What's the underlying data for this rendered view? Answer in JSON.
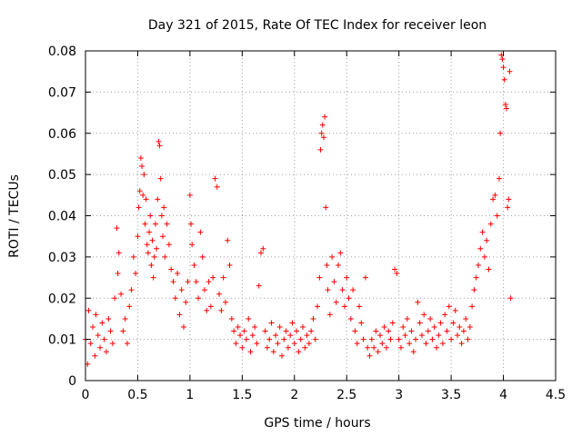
{
  "chart_data": {
    "type": "scatter",
    "title": "Day 321 of 2015, Rate Of TEC Index for receiver leon",
    "xlabel": "GPS time / hours",
    "ylabel": "ROTI / TECUs",
    "xlim": [
      0,
      4.5
    ],
    "ylim": [
      0,
      0.08
    ],
    "x_ticks": [
      0,
      0.5,
      1,
      1.5,
      2,
      2.5,
      3,
      3.5,
      4,
      4.5
    ],
    "x_tick_labels": [
      "0",
      "0.5",
      "1",
      "1.5",
      "2",
      "2.5",
      "3",
      "3.5",
      "4",
      "4.5"
    ],
    "y_ticks": [
      0,
      0.01,
      0.02,
      0.03,
      0.04,
      0.05,
      0.06,
      0.07,
      0.08
    ],
    "y_tick_labels": [
      "0",
      "0.01",
      "0.02",
      "0.03",
      "0.04",
      "0.05",
      "0.06",
      "0.07",
      "0.08"
    ],
    "grid": true,
    "marker": "+",
    "color": "#ff0000",
    "series": [
      {
        "name": "ROTI",
        "points": [
          [
            0.0,
            0.01
          ],
          [
            0.02,
            0.004
          ],
          [
            0.03,
            0.017
          ],
          [
            0.05,
            0.009
          ],
          [
            0.07,
            0.013
          ],
          [
            0.09,
            0.006
          ],
          [
            0.1,
            0.016
          ],
          [
            0.12,
            0.011
          ],
          [
            0.14,
            0.008
          ],
          [
            0.16,
            0.014
          ],
          [
            0.18,
            0.01
          ],
          [
            0.2,
            0.007
          ],
          [
            0.22,
            0.015
          ],
          [
            0.24,
            0.012
          ],
          [
            0.26,
            0.009
          ],
          [
            0.28,
            0.02
          ],
          [
            0.3,
            0.037
          ],
          [
            0.31,
            0.026
          ],
          [
            0.32,
            0.031
          ],
          [
            0.34,
            0.021
          ],
          [
            0.36,
            0.012
          ],
          [
            0.38,
            0.015
          ],
          [
            0.4,
            0.009
          ],
          [
            0.42,
            0.018
          ],
          [
            0.44,
            0.022
          ],
          [
            0.46,
            0.03
          ],
          [
            0.48,
            0.026
          ],
          [
            0.5,
            0.035
          ],
          [
            0.51,
            0.042
          ],
          [
            0.52,
            0.046
          ],
          [
            0.53,
            0.054
          ],
          [
            0.54,
            0.052
          ],
          [
            0.55,
            0.045
          ],
          [
            0.56,
            0.05
          ],
          [
            0.57,
            0.038
          ],
          [
            0.58,
            0.044
          ],
          [
            0.59,
            0.033
          ],
          [
            0.6,
            0.031
          ],
          [
            0.61,
            0.036
          ],
          [
            0.62,
            0.04
          ],
          [
            0.63,
            0.028
          ],
          [
            0.64,
            0.034
          ],
          [
            0.65,
            0.025
          ],
          [
            0.66,
            0.03
          ],
          [
            0.67,
            0.038
          ],
          [
            0.68,
            0.032
          ],
          [
            0.69,
            0.044
          ],
          [
            0.7,
            0.058
          ],
          [
            0.71,
            0.057
          ],
          [
            0.72,
            0.049
          ],
          [
            0.73,
            0.04
          ],
          [
            0.74,
            0.035
          ],
          [
            0.75,
            0.042
          ],
          [
            0.76,
            0.03
          ],
          [
            0.78,
            0.038
          ],
          [
            0.8,
            0.033
          ],
          [
            0.82,
            0.027
          ],
          [
            0.84,
            0.024
          ],
          [
            0.86,
            0.02
          ],
          [
            0.88,
            0.026
          ],
          [
            0.9,
            0.016
          ],
          [
            0.92,
            0.022
          ],
          [
            0.94,
            0.013
          ],
          [
            0.96,
            0.019
          ],
          [
            0.98,
            0.024
          ],
          [
            1.0,
            0.045
          ],
          [
            1.01,
            0.038
          ],
          [
            1.02,
            0.033
          ],
          [
            1.04,
            0.028
          ],
          [
            1.06,
            0.024
          ],
          [
            1.08,
            0.02
          ],
          [
            1.1,
            0.036
          ],
          [
            1.12,
            0.03
          ],
          [
            1.14,
            0.022
          ],
          [
            1.16,
            0.017
          ],
          [
            1.18,
            0.024
          ],
          [
            1.2,
            0.018
          ],
          [
            1.22,
            0.025
          ],
          [
            1.24,
            0.049
          ],
          [
            1.26,
            0.047
          ],
          [
            1.28,
            0.021
          ],
          [
            1.3,
            0.017
          ],
          [
            1.32,
            0.025
          ],
          [
            1.34,
            0.019
          ],
          [
            1.36,
            0.034
          ],
          [
            1.38,
            0.028
          ],
          [
            1.4,
            0.015
          ],
          [
            1.42,
            0.012
          ],
          [
            1.44,
            0.009
          ],
          [
            1.46,
            0.013
          ],
          [
            1.48,
            0.011
          ],
          [
            1.5,
            0.008
          ],
          [
            1.52,
            0.012
          ],
          [
            1.54,
            0.01
          ],
          [
            1.56,
            0.015
          ],
          [
            1.58,
            0.007
          ],
          [
            1.6,
            0.011
          ],
          [
            1.62,
            0.013
          ],
          [
            1.64,
            0.009
          ],
          [
            1.66,
            0.023
          ],
          [
            1.68,
            0.031
          ],
          [
            1.7,
            0.032
          ],
          [
            1.72,
            0.012
          ],
          [
            1.74,
            0.008
          ],
          [
            1.76,
            0.01
          ],
          [
            1.78,
            0.014
          ],
          [
            1.8,
            0.007
          ],
          [
            1.82,
            0.011
          ],
          [
            1.84,
            0.009
          ],
          [
            1.86,
            0.013
          ],
          [
            1.88,
            0.006
          ],
          [
            1.9,
            0.01
          ],
          [
            1.92,
            0.012
          ],
          [
            1.94,
            0.008
          ],
          [
            1.96,
            0.011
          ],
          [
            1.98,
            0.014
          ],
          [
            2.0,
            0.009
          ],
          [
            2.02,
            0.012
          ],
          [
            2.04,
            0.007
          ],
          [
            2.06,
            0.01
          ],
          [
            2.08,
            0.013
          ],
          [
            2.1,
            0.008
          ],
          [
            2.12,
            0.011
          ],
          [
            2.14,
            0.009
          ],
          [
            2.16,
            0.012
          ],
          [
            2.18,
            0.015
          ],
          [
            2.2,
            0.01
          ],
          [
            2.22,
            0.018
          ],
          [
            2.24,
            0.025
          ],
          [
            2.25,
            0.056
          ],
          [
            2.26,
            0.06
          ],
          [
            2.27,
            0.062
          ],
          [
            2.28,
            0.059
          ],
          [
            2.29,
            0.064
          ],
          [
            2.3,
            0.042
          ],
          [
            2.31,
            0.028
          ],
          [
            2.32,
            0.022
          ],
          [
            2.34,
            0.016
          ],
          [
            2.36,
            0.03
          ],
          [
            2.38,
            0.024
          ],
          [
            2.4,
            0.019
          ],
          [
            2.42,
            0.028
          ],
          [
            2.44,
            0.031
          ],
          [
            2.46,
            0.022
          ],
          [
            2.48,
            0.018
          ],
          [
            2.5,
            0.025
          ],
          [
            2.52,
            0.02
          ],
          [
            2.54,
            0.015
          ],
          [
            2.56,
            0.022
          ],
          [
            2.58,
            0.012
          ],
          [
            2.6,
            0.009
          ],
          [
            2.62,
            0.018
          ],
          [
            2.64,
            0.014
          ],
          [
            2.66,
            0.01
          ],
          [
            2.68,
            0.025
          ],
          [
            2.7,
            0.008
          ],
          [
            2.72,
            0.006
          ],
          [
            2.74,
            0.01
          ],
          [
            2.76,
            0.008
          ],
          [
            2.78,
            0.012
          ],
          [
            2.8,
            0.007
          ],
          [
            2.82,
            0.011
          ],
          [
            2.84,
            0.009
          ],
          [
            2.86,
            0.013
          ],
          [
            2.88,
            0.008
          ],
          [
            2.9,
            0.012
          ],
          [
            2.92,
            0.01
          ],
          [
            2.94,
            0.014
          ],
          [
            2.96,
            0.027
          ],
          [
            2.98,
            0.026
          ],
          [
            3.0,
            0.01
          ],
          [
            3.02,
            0.008
          ],
          [
            3.04,
            0.013
          ],
          [
            3.06,
            0.011
          ],
          [
            3.08,
            0.015
          ],
          [
            3.1,
            0.009
          ],
          [
            3.12,
            0.012
          ],
          [
            3.14,
            0.007
          ],
          [
            3.16,
            0.01
          ],
          [
            3.18,
            0.019
          ],
          [
            3.2,
            0.014
          ],
          [
            3.22,
            0.011
          ],
          [
            3.24,
            0.016
          ],
          [
            3.26,
            0.009
          ],
          [
            3.28,
            0.012
          ],
          [
            3.3,
            0.015
          ],
          [
            3.32,
            0.01
          ],
          [
            3.34,
            0.013
          ],
          [
            3.36,
            0.008
          ],
          [
            3.38,
            0.011
          ],
          [
            3.4,
            0.014
          ],
          [
            3.42,
            0.009
          ],
          [
            3.44,
            0.016
          ],
          [
            3.46,
            0.012
          ],
          [
            3.48,
            0.018
          ],
          [
            3.5,
            0.01
          ],
          [
            3.52,
            0.014
          ],
          [
            3.54,
            0.017
          ],
          [
            3.56,
            0.011
          ],
          [
            3.58,
            0.013
          ],
          [
            3.6,
            0.009
          ],
          [
            3.62,
            0.012
          ],
          [
            3.64,
            0.015
          ],
          [
            3.66,
            0.01
          ],
          [
            3.68,
            0.013
          ],
          [
            3.7,
            0.018
          ],
          [
            3.72,
            0.022
          ],
          [
            3.74,
            0.025
          ],
          [
            3.76,
            0.028
          ],
          [
            3.78,
            0.032
          ],
          [
            3.8,
            0.036
          ],
          [
            3.82,
            0.03
          ],
          [
            3.84,
            0.034
          ],
          [
            3.86,
            0.027
          ],
          [
            3.88,
            0.038
          ],
          [
            3.9,
            0.044
          ],
          [
            3.92,
            0.045
          ],
          [
            3.94,
            0.04
          ],
          [
            3.96,
            0.049
          ],
          [
            3.97,
            0.06
          ],
          [
            3.98,
            0.079
          ],
          [
            3.99,
            0.078
          ],
          [
            4.0,
            0.076
          ],
          [
            4.01,
            0.073
          ],
          [
            4.02,
            0.067
          ],
          [
            4.03,
            0.066
          ],
          [
            4.04,
            0.042
          ],
          [
            4.05,
            0.044
          ],
          [
            4.06,
            0.075
          ],
          [
            4.07,
            0.02
          ]
        ]
      }
    ]
  }
}
